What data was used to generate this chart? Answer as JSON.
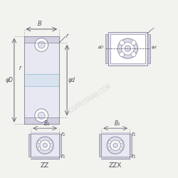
{
  "bg_color": "#f2f2ee",
  "line_color": "#9090a0",
  "text_color": "#505060",
  "watermark": "ROSPROSNAB.COM",
  "watermark_color": "#cccccc",
  "labels": {
    "B": "B",
    "r_top": "r",
    "r_mid": "r",
    "phiD": "φD",
    "phid": "φd",
    "B1": "B₁",
    "r1_top": "r₁",
    "r1_bot": "r₁",
    "ZZ": "ZZ",
    "ZZX": "ZZX"
  },
  "outer_color": "#d0d0e0",
  "inner_color": "#e8e8f2",
  "race_color": "#c8c8d8",
  "ball_color": "#e0e0ee",
  "side_fill": "#dcdcec"
}
